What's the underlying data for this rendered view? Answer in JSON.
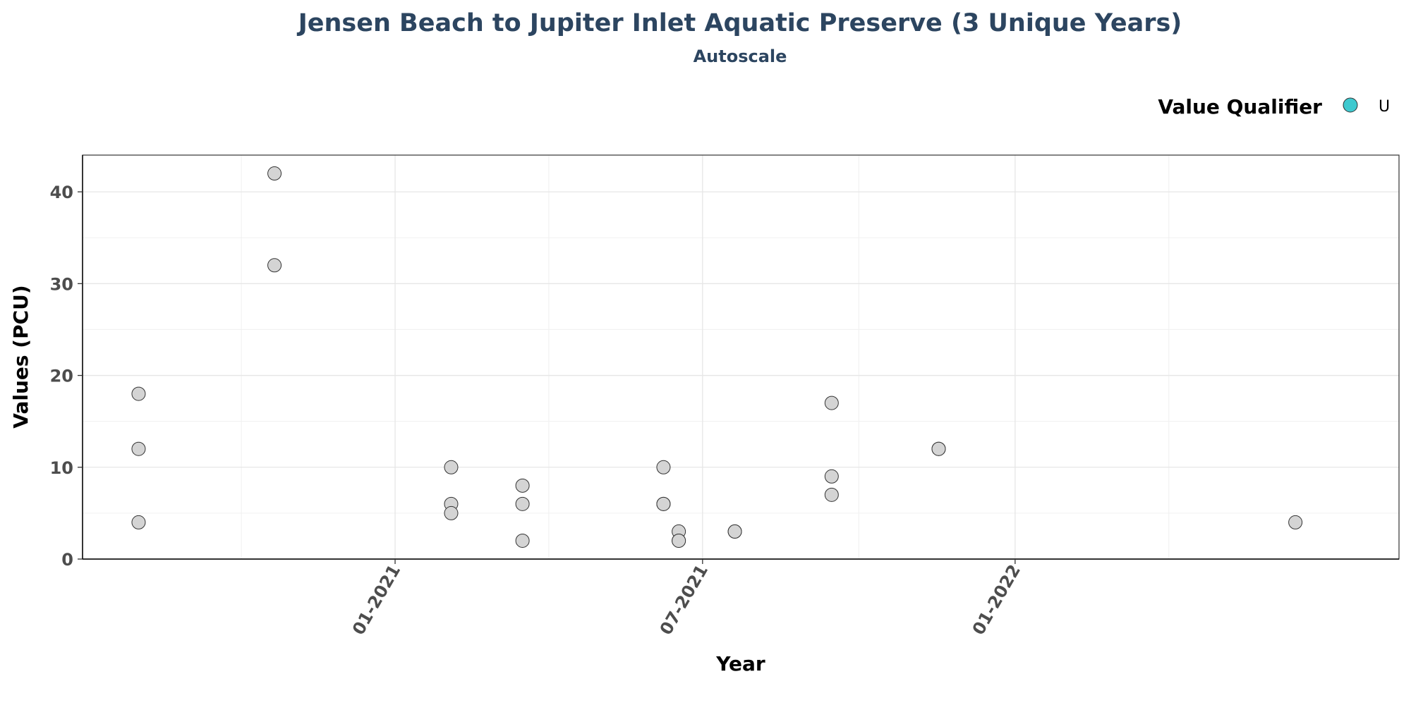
{
  "chart_data": {
    "type": "scatter",
    "title": "Jensen Beach to Jupiter Inlet Aquatic Preserve (3 Unique Years)",
    "subtitle": "Autoscale",
    "xlabel": "Year",
    "ylabel": "Values (PCU)",
    "x_ticks": [
      {
        "date": "2021-01-01",
        "label": "01-2021"
      },
      {
        "date": "2021-07-01",
        "label": "07-2021"
      },
      {
        "date": "2022-01-01",
        "label": "01-2022"
      }
    ],
    "y_ticks": [
      0,
      10,
      20,
      30,
      40
    ],
    "xlim": [
      "2020-07-01",
      "2022-08-15"
    ],
    "ylim": [
      0,
      44
    ],
    "grid": true,
    "legend": {
      "title": "Value Qualifier",
      "placement": "top-right",
      "entries": [
        {
          "label": "U",
          "color": "#3ec9cf"
        }
      ]
    },
    "point_color": "#d4d4d4",
    "points": [
      {
        "x": "2020-08-03",
        "y": 18
      },
      {
        "x": "2020-08-03",
        "y": 12
      },
      {
        "x": "2020-08-03",
        "y": 4
      },
      {
        "x": "2020-10-22",
        "y": 42
      },
      {
        "x": "2020-10-22",
        "y": 32
      },
      {
        "x": "2021-02-03",
        "y": 10
      },
      {
        "x": "2021-02-03",
        "y": 6
      },
      {
        "x": "2021-02-03",
        "y": 5
      },
      {
        "x": "2021-03-17",
        "y": 8
      },
      {
        "x": "2021-03-17",
        "y": 6
      },
      {
        "x": "2021-03-17",
        "y": 2
      },
      {
        "x": "2021-06-08",
        "y": 10
      },
      {
        "x": "2021-06-08",
        "y": 6
      },
      {
        "x": "2021-06-08",
        "y": 6
      },
      {
        "x": "2021-06-17",
        "y": 3
      },
      {
        "x": "2021-06-17",
        "y": 2
      },
      {
        "x": "2021-06-17",
        "y": 2
      },
      {
        "x": "2021-07-20",
        "y": 3
      },
      {
        "x": "2021-07-20",
        "y": 3
      },
      {
        "x": "2021-09-15",
        "y": 17
      },
      {
        "x": "2021-09-15",
        "y": 9
      },
      {
        "x": "2021-09-15",
        "y": 7
      },
      {
        "x": "2021-11-17",
        "y": 12
      },
      {
        "x": "2021-11-17",
        "y": 12
      },
      {
        "x": "2022-06-15",
        "y": 4
      }
    ]
  }
}
